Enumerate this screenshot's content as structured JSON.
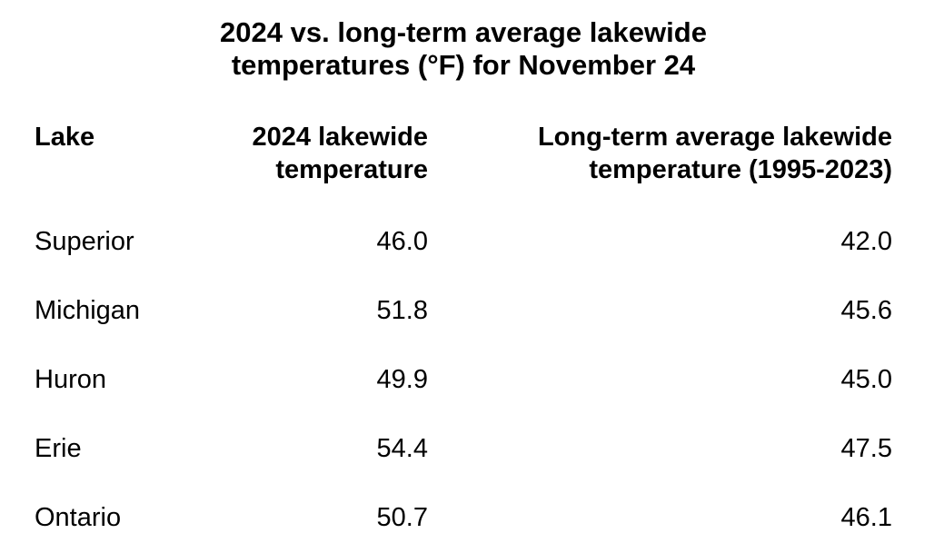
{
  "chart_data": {
    "type": "table",
    "title_line1": "2024 vs. long-term average lakewide",
    "title_line2": "temperatures (°F) for November 24",
    "columns": [
      {
        "line1": "Lake",
        "line2": ""
      },
      {
        "line1": "2024 lakewide",
        "line2": "temperature"
      },
      {
        "line1": "Long-term average lakewide",
        "line2": "temperature (1995-2023)"
      }
    ],
    "rows": [
      {
        "lake": "Superior",
        "temp_2024": "46.0",
        "temp_avg": "42.0"
      },
      {
        "lake": "Michigan",
        "temp_2024": "51.8",
        "temp_avg": "45.6"
      },
      {
        "lake": "Huron",
        "temp_2024": "49.9",
        "temp_avg": "45.0"
      },
      {
        "lake": "Erie",
        "temp_2024": "54.4",
        "temp_avg": "47.5"
      },
      {
        "lake": "Ontario",
        "temp_2024": "50.7",
        "temp_avg": "46.1"
      }
    ]
  }
}
